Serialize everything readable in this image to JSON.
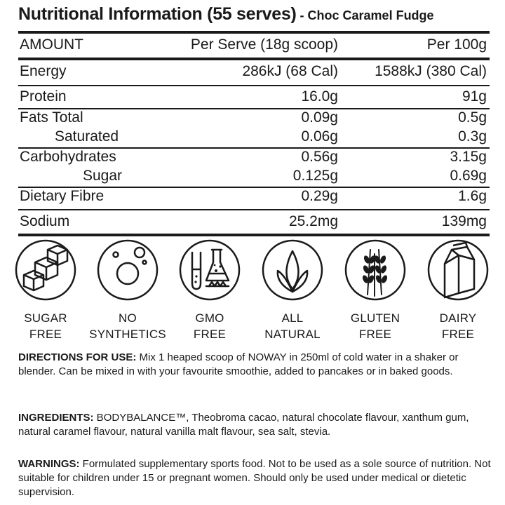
{
  "title": {
    "main": "Nutritional Information (55 serves)",
    "sub": " - Choc Caramel Fudge"
  },
  "table": {
    "headers": [
      "AMOUNT",
      "Per Serve (18g scoop)",
      "Per 100g"
    ],
    "rows": [
      {
        "label": "Energy",
        "per_serve": "286kJ (68 Cal)",
        "per_100g": "1588kJ (380 Cal)"
      },
      {
        "label": "Protein",
        "per_serve": "16.0g",
        "per_100g": "91g"
      },
      {
        "label": "Fats Total",
        "per_serve": "0.09g",
        "per_100g": "0.5g"
      },
      {
        "label": "Saturated",
        "per_serve": "0.06g",
        "per_100g": "0.3g"
      },
      {
        "label": "Carbohydrates",
        "per_serve": "0.56g",
        "per_100g": "3.15g"
      },
      {
        "label": "Sugar",
        "per_serve": "0.125g",
        "per_100g": "0.69g"
      },
      {
        "label": "Dietary Fibre",
        "per_serve": "0.29g",
        "per_100g": "1.6g"
      },
      {
        "label": "Sodium",
        "per_serve": "25.2mg",
        "per_100g": "139mg"
      }
    ]
  },
  "badges": [
    {
      "icon": "sugar-cubes-icon",
      "line1": "SUGAR",
      "line2": "FREE"
    },
    {
      "icon": "bubbles-icon",
      "line1": "NO",
      "line2": "SYNTHETICS"
    },
    {
      "icon": "lab-flask-icon",
      "line1": "GMO",
      "line2": "FREE"
    },
    {
      "icon": "leaf-icon",
      "line1": "ALL",
      "line2": "NATURAL"
    },
    {
      "icon": "wheat-icon",
      "line1": "GLUTEN",
      "line2": "FREE"
    },
    {
      "icon": "milk-carton-icon",
      "line1": "DAIRY",
      "line2": "FREE"
    }
  ],
  "directions": {
    "heading": "DIRECTIONS FOR USE:",
    "text": " Mix 1 heaped scoop of NOWAY in 250ml of cold water in a shaker or blender.  Can be mixed in with your favourite smoothie, added to pancakes or in baked goods."
  },
  "ingredients": {
    "heading": "INGREDIENTS:",
    "text": " BODYBALANCE™, Theobroma cacao, natural chocolate flavour, xanthum gum, natural caramel flavour, natural vanilla malt flavour, sea salt, stevia."
  },
  "warnings": {
    "heading": "WARNINGS:",
    "text": "  Formulated supplementary sports food. Not to be used as a sole source of nutrition. Not suitable for children under 15 or pregnant women. Should only be used under medical or dietetic supervision."
  },
  "colors": {
    "ink": "#1a1a1a",
    "background": "#ffffff"
  }
}
